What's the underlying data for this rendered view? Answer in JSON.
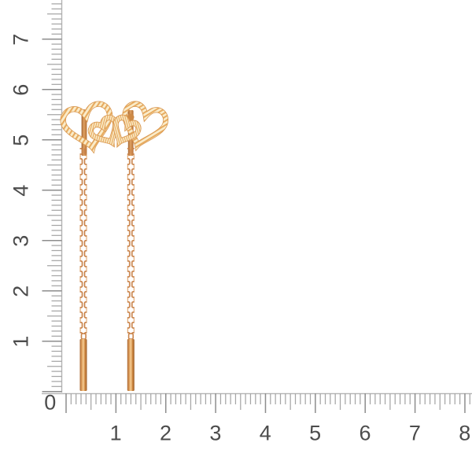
{
  "rulers": {
    "origin_label": "0",
    "vertical": {
      "labels": [
        "1",
        "2",
        "3",
        "4",
        "5",
        "6",
        "7"
      ]
    },
    "horizontal": {
      "labels": [
        "1",
        "2",
        "3",
        "4",
        "5",
        "6",
        "7",
        "8"
      ]
    }
  },
  "ruler_style": {
    "tick_color": "#a6a6a6",
    "major_tick_color": "#8d8d8d",
    "axis_color": "#b3b3b3",
    "label_color": "#4c4c4c",
    "background": "#ffffff"
  },
  "product": {
    "colors": {
      "gold_cream": "#faecca",
      "gold_stripe": "#e7aa5e",
      "gold_ribbon_edge": "#d99852",
      "gold_chain": "#c9834a",
      "gold_chain_light": "#dd9c5e",
      "gold_post_dark": "#a96731",
      "gold_bar_light": "#f6cf96",
      "gold_bar_dark": "#9d5e28"
    }
  }
}
